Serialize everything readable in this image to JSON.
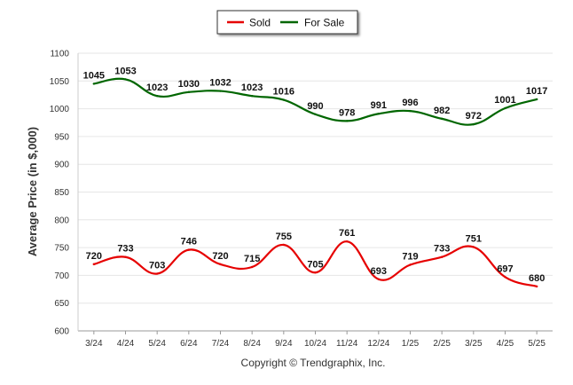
{
  "chart_data": {
    "type": "line",
    "categories": [
      "3/24",
      "4/24",
      "5/24",
      "6/24",
      "7/24",
      "8/24",
      "9/24",
      "10/24",
      "11/24",
      "12/24",
      "1/25",
      "2/25",
      "3/25",
      "4/25",
      "5/25"
    ],
    "series": [
      {
        "name": "Sold",
        "color": "#e60000",
        "values": [
          720,
          733,
          703,
          746,
          720,
          715,
          755,
          705,
          761,
          693,
          719,
          733,
          751,
          697,
          680
        ]
      },
      {
        "name": "For Sale",
        "color": "#006600",
        "values": [
          1045,
          1053,
          1023,
          1030,
          1032,
          1023,
          1016,
          990,
          978,
          991,
          996,
          982,
          972,
          1001,
          1017
        ]
      }
    ],
    "title": "",
    "xlabel": "",
    "ylabel": "Average Price (in $,000)",
    "ylim": [
      600,
      1100
    ],
    "yticks": [
      600,
      650,
      700,
      750,
      800,
      850,
      900,
      950,
      1000,
      1050,
      1100
    ],
    "grid": true,
    "legend_position": "top-center",
    "smooth": true
  },
  "footer": {
    "copyright": "Copyright © Trendgraphix, Inc."
  }
}
